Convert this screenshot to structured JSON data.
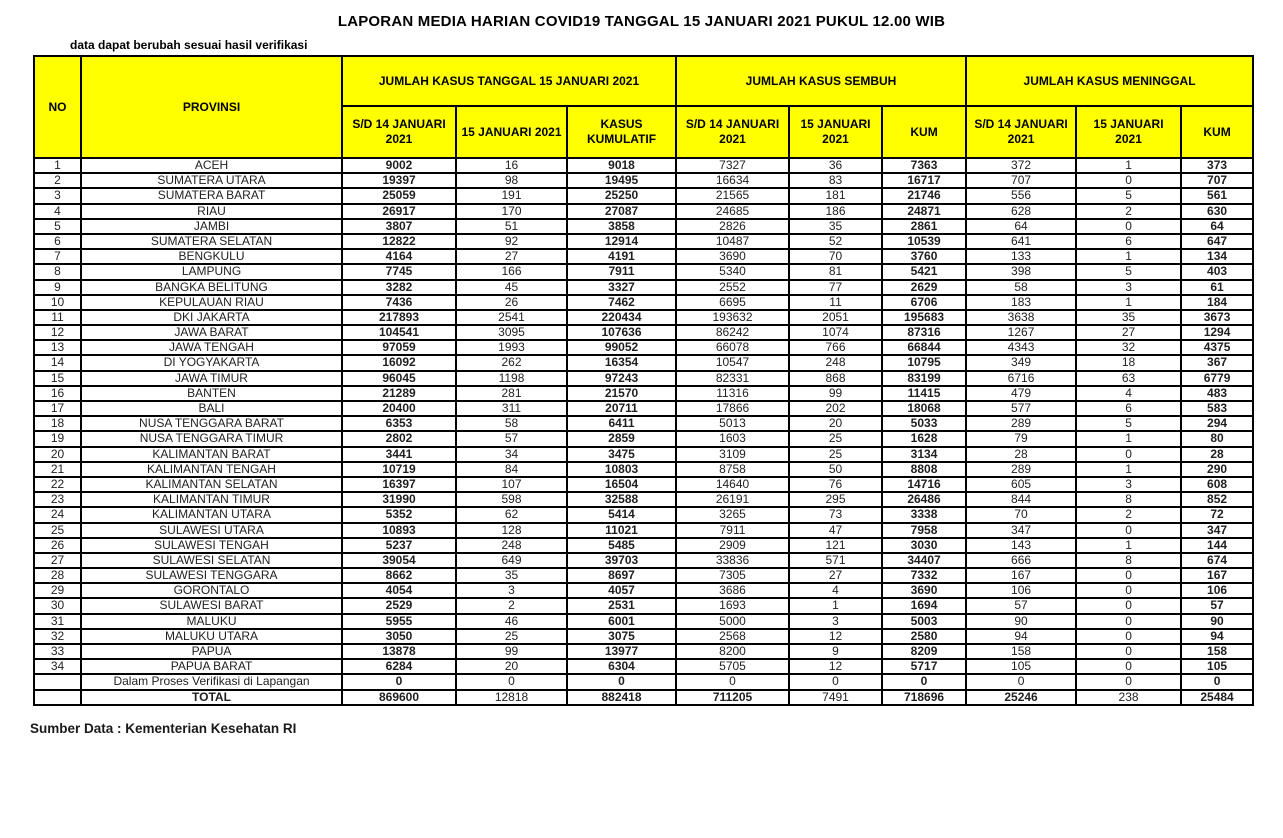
{
  "title": "LAPORAN MEDIA HARIAN COVID19 TANGGAL 15 JANUARI 2021 PUKUL 12.00 WIB",
  "note": "data dapat berubah sesuai hasil verifikasi",
  "source": "Sumber Data : Kementerian Kesehatan RI",
  "colors": {
    "header_bg": "#FFFF00",
    "border": "#000000",
    "muted_text": "#595959",
    "text": "#000000"
  },
  "table": {
    "col_headers": {
      "no": "NO",
      "provinsi": "PROVINSI",
      "groups": [
        {
          "label": "JUMLAH KASUS TANGGAL 15 JANUARI 2021",
          "sub": [
            "S/D 14 JANUARI 2021",
            "15 JANUARI 2021",
            "KASUS KUMULATIF"
          ]
        },
        {
          "label": "JUMLAH KASUS SEMBUH",
          "sub": [
            "S/D 14 JANUARI 2021",
            "15 JANUARI 2021",
            "KUM"
          ]
        },
        {
          "label": "JUMLAH KASUS MENINGGAL",
          "sub": [
            "S/D 14 JANUARI 2021",
            "15 JANUARI 2021",
            "KUM"
          ]
        }
      ]
    },
    "rows": [
      {
        "no": "1",
        "provinsi": "ACEH",
        "values": [
          "9002",
          "16",
          "9018",
          "7327",
          "36",
          "7363",
          "372",
          "1",
          "373"
        ]
      },
      {
        "no": "2",
        "provinsi": "SUMATERA UTARA",
        "values": [
          "19397",
          "98",
          "19495",
          "16634",
          "83",
          "16717",
          "707",
          "0",
          "707"
        ]
      },
      {
        "no": "3",
        "provinsi": "SUMATERA BARAT",
        "values": [
          "25059",
          "191",
          "25250",
          "21565",
          "181",
          "21746",
          "556",
          "5",
          "561"
        ]
      },
      {
        "no": "4",
        "provinsi": "RIAU",
        "values": [
          "26917",
          "170",
          "27087",
          "24685",
          "186",
          "24871",
          "628",
          "2",
          "630"
        ]
      },
      {
        "no": "5",
        "provinsi": "JAMBI",
        "values": [
          "3807",
          "51",
          "3858",
          "2826",
          "35",
          "2861",
          "64",
          "0",
          "64"
        ]
      },
      {
        "no": "6",
        "provinsi": "SUMATERA SELATAN",
        "values": [
          "12822",
          "92",
          "12914",
          "10487",
          "52",
          "10539",
          "641",
          "6",
          "647"
        ]
      },
      {
        "no": "7",
        "provinsi": "BENGKULU",
        "values": [
          "4164",
          "27",
          "4191",
          "3690",
          "70",
          "3760",
          "133",
          "1",
          "134"
        ]
      },
      {
        "no": "8",
        "provinsi": "LAMPUNG",
        "values": [
          "7745",
          "166",
          "7911",
          "5340",
          "81",
          "5421",
          "398",
          "5",
          "403"
        ]
      },
      {
        "no": "9",
        "provinsi": "BANGKA BELITUNG",
        "values": [
          "3282",
          "45",
          "3327",
          "2552",
          "77",
          "2629",
          "58",
          "3",
          "61"
        ]
      },
      {
        "no": "10",
        "provinsi": "KEPULAUAN RIAU",
        "values": [
          "7436",
          "26",
          "7462",
          "6695",
          "11",
          "6706",
          "183",
          "1",
          "184"
        ]
      },
      {
        "no": "11",
        "provinsi": "DKI JAKARTA",
        "values": [
          "217893",
          "2541",
          "220434",
          "193632",
          "2051",
          "195683",
          "3638",
          "35",
          "3673"
        ]
      },
      {
        "no": "12",
        "provinsi": "JAWA BARAT",
        "values": [
          "104541",
          "3095",
          "107636",
          "86242",
          "1074",
          "87316",
          "1267",
          "27",
          "1294"
        ]
      },
      {
        "no": "13",
        "provinsi": "JAWA TENGAH",
        "values": [
          "97059",
          "1993",
          "99052",
          "66078",
          "766",
          "66844",
          "4343",
          "32",
          "4375"
        ]
      },
      {
        "no": "14",
        "provinsi": "DI YOGYAKARTA",
        "values": [
          "16092",
          "262",
          "16354",
          "10547",
          "248",
          "10795",
          "349",
          "18",
          "367"
        ]
      },
      {
        "no": "15",
        "provinsi": "JAWA TIMUR",
        "values": [
          "96045",
          "1198",
          "97243",
          "82331",
          "868",
          "83199",
          "6716",
          "63",
          "6779"
        ]
      },
      {
        "no": "16",
        "provinsi": "BANTEN",
        "values": [
          "21289",
          "281",
          "21570",
          "11316",
          "99",
          "11415",
          "479",
          "4",
          "483"
        ]
      },
      {
        "no": "17",
        "provinsi": "BALI",
        "values": [
          "20400",
          "311",
          "20711",
          "17866",
          "202",
          "18068",
          "577",
          "6",
          "583"
        ]
      },
      {
        "no": "18",
        "provinsi": "NUSA TENGGARA BARAT",
        "values": [
          "6353",
          "58",
          "6411",
          "5013",
          "20",
          "5033",
          "289",
          "5",
          "294"
        ]
      },
      {
        "no": "19",
        "provinsi": "NUSA TENGGARA TIMUR",
        "values": [
          "2802",
          "57",
          "2859",
          "1603",
          "25",
          "1628",
          "79",
          "1",
          "80"
        ]
      },
      {
        "no": "20",
        "provinsi": "KALIMANTAN BARAT",
        "values": [
          "3441",
          "34",
          "3475",
          "3109",
          "25",
          "3134",
          "28",
          "0",
          "28"
        ]
      },
      {
        "no": "21",
        "provinsi": "KALIMANTAN TENGAH",
        "values": [
          "10719",
          "84",
          "10803",
          "8758",
          "50",
          "8808",
          "289",
          "1",
          "290"
        ]
      },
      {
        "no": "22",
        "provinsi": "KALIMANTAN SELATAN",
        "values": [
          "16397",
          "107",
          "16504",
          "14640",
          "76",
          "14716",
          "605",
          "3",
          "608"
        ]
      },
      {
        "no": "23",
        "provinsi": "KALIMANTAN TIMUR",
        "values": [
          "31990",
          "598",
          "32588",
          "26191",
          "295",
          "26486",
          "844",
          "8",
          "852"
        ]
      },
      {
        "no": "24",
        "provinsi": "KALIMANTAN UTARA",
        "values": [
          "5352",
          "62",
          "5414",
          "3265",
          "73",
          "3338",
          "70",
          "2",
          "72"
        ]
      },
      {
        "no": "25",
        "provinsi": "SULAWESI UTARA",
        "values": [
          "10893",
          "128",
          "11021",
          "7911",
          "47",
          "7958",
          "347",
          "0",
          "347"
        ]
      },
      {
        "no": "26",
        "provinsi": "SULAWESI TENGAH",
        "values": [
          "5237",
          "248",
          "5485",
          "2909",
          "121",
          "3030",
          "143",
          "1",
          "144"
        ]
      },
      {
        "no": "27",
        "provinsi": "SULAWESI SELATAN",
        "values": [
          "39054",
          "649",
          "39703",
          "33836",
          "571",
          "34407",
          "666",
          "8",
          "674"
        ]
      },
      {
        "no": "28",
        "provinsi": "SULAWESI TENGGARA",
        "values": [
          "8662",
          "35",
          "8697",
          "7305",
          "27",
          "7332",
          "167",
          "0",
          "167"
        ]
      },
      {
        "no": "29",
        "provinsi": "GORONTALO",
        "values": [
          "4054",
          "3",
          "4057",
          "3686",
          "4",
          "3690",
          "106",
          "0",
          "106"
        ]
      },
      {
        "no": "30",
        "provinsi": "SULAWESI BARAT",
        "values": [
          "2529",
          "2",
          "2531",
          "1693",
          "1",
          "1694",
          "57",
          "0",
          "57"
        ]
      },
      {
        "no": "31",
        "provinsi": "MALUKU",
        "values": [
          "5955",
          "46",
          "6001",
          "5000",
          "3",
          "5003",
          "90",
          "0",
          "90"
        ]
      },
      {
        "no": "32",
        "provinsi": "MALUKU UTARA",
        "values": [
          "3050",
          "25",
          "3075",
          "2568",
          "12",
          "2580",
          "94",
          "0",
          "94"
        ]
      },
      {
        "no": "33",
        "provinsi": "PAPUA",
        "values": [
          "13878",
          "99",
          "13977",
          "8200",
          "9",
          "8209",
          "158",
          "0",
          "158"
        ]
      },
      {
        "no": "34",
        "provinsi": "PAPUA BARAT",
        "values": [
          "6284",
          "20",
          "6304",
          "5705",
          "12",
          "5717",
          "105",
          "0",
          "105"
        ]
      },
      {
        "no": "",
        "provinsi": "Dalam Proses Verifikasi di Lapangan",
        "values": [
          "0",
          "0",
          "0",
          "0",
          "0",
          "0",
          "0",
          "0",
          "0"
        ]
      }
    ],
    "total_row": {
      "no": "",
      "provinsi": "TOTAL",
      "values": [
        "869600",
        "12818",
        "882418",
        "711205",
        "7491",
        "718696",
        "25246",
        "238",
        "25484"
      ]
    }
  }
}
